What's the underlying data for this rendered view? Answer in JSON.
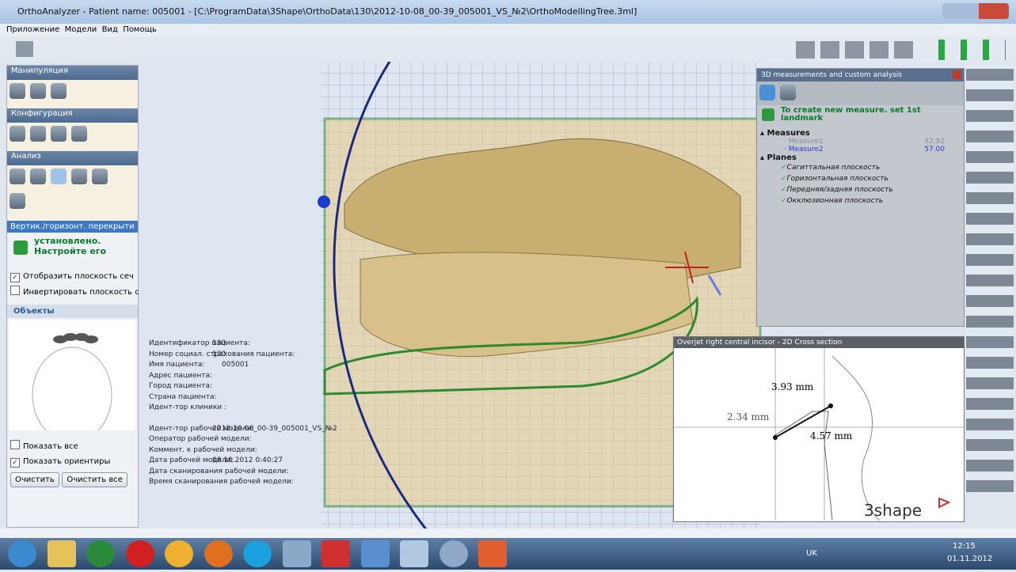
{
  "window": {
    "title": "OrthoAnalyzer - Patient name: 005001 - [C:\\ProgramData\\3Shape\\OrthoData\\130\\2012-10-08_00-39_005001_VS_№2\\OrthoModellingTree.3ml]"
  },
  "menu": [
    "Приложение",
    "Модели",
    "Вид",
    "Помощь"
  ],
  "left_panel": {
    "sections": [
      "Манипуляция",
      "Конфигурация",
      "Анализ"
    ],
    "active_tab": "Вертик./горизонт. перекрыти",
    "message": [
      "установлено.",
      "Настройте его"
    ],
    "checkboxes": [
      "Отобразить плоскость сеч",
      "Инвертировать плоскость с"
    ],
    "objects_title": "Объекты",
    "show_all": "Показать все",
    "show_landmarks": "Показать ориентиры",
    "buttons": [
      "Очистить",
      "Очистить все"
    ]
  },
  "patient_info": [
    {
      "label": "Идентификатор пациента:",
      "value": "130"
    },
    {
      "label": "Номер социал. страхования пациента:",
      "value": "130"
    },
    {
      "label": "Имя пациента:",
      "value": "005001"
    },
    {
      "label": "Адрес пациента:"
    },
    {
      "label": "Город пациента:"
    },
    {
      "label": "Страна пациента:"
    },
    {
      "label": "Идент-тор клиники :"
    },
    {
      "label": "Идент-тор рабочей модели:",
      "value": "2012-10-08_00-39_005001_VS_№2"
    },
    {
      "label": "Оператор рабочей модели:"
    },
    {
      "label": "Коммент. к рабочей модели:"
    },
    {
      "label": "Дата рабочей модели:",
      "value": "08.10.2012 0:40:27"
    },
    {
      "label": "Дата сканирования рабочей модели:"
    },
    {
      "label": "Время сканирования рабочей модели:"
    }
  ],
  "measure_panel": {
    "title": "3D measurements and custom analysis",
    "hint": "To create new measure. set 1st landmark",
    "measures_title": "Measures",
    "measures": [
      {
        "name": "Measure1",
        "value": "42.92"
      },
      {
        "name": "Measure2",
        "value": "57.00"
      }
    ],
    "planes_title": "Planes",
    "planes": [
      "Сагиттальная плоскость",
      "Горизонтальная плоскость",
      "Передняя/задняя плоскость",
      "Окклюзионная плоскость"
    ]
  },
  "cross_section": {
    "title": "Overjet right central incisor - 2D Cross section",
    "labels": [
      "3.93 mm",
      "2.34 mm",
      "4.57 mm"
    ],
    "logo": "3shape"
  },
  "taskbar": {
    "language": "UK",
    "time": "12:15",
    "date": "01.11.2012"
  }
}
